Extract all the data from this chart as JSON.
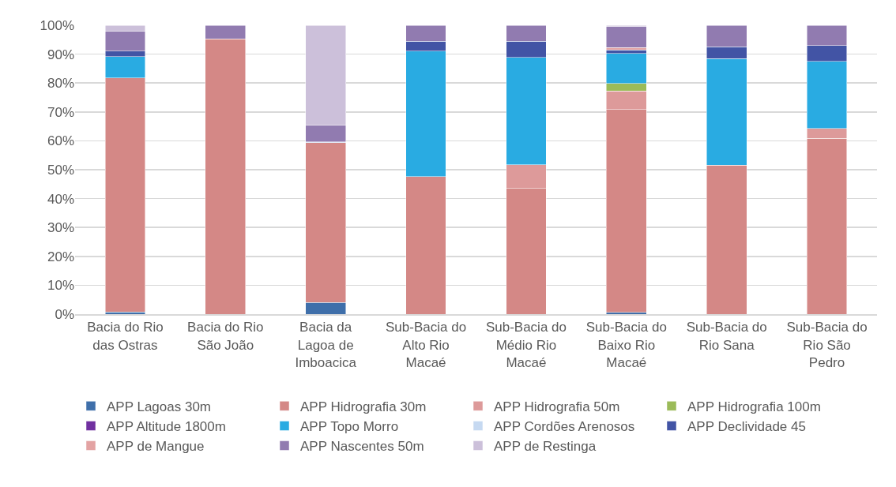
{
  "chart_data": {
    "type": "bar",
    "stacked": true,
    "categories": [
      "Bacia do Rio das Ostras",
      "Bacia do Rio São João",
      "Bacia da Lagoa de Imboacica",
      "Sub-Bacia do Alto Rio Macaé",
      "Sub-Bacia do Médio Rio Macaé",
      "Sub-Bacia do Baixo Rio Macaé",
      "Sub-Bacia do Rio Sana",
      "Sub-Bacia do Rio São Pedro"
    ],
    "series": [
      {
        "name": "APP Lagoas 30m",
        "color": "#3f6faa",
        "values": [
          0.8,
          null,
          4,
          null,
          null,
          0.6,
          null,
          null
        ]
      },
      {
        "name": "APP Hidrografia 30m",
        "color": "#d48886",
        "values": [
          80.9,
          95.3,
          55.3,
          47.6,
          43.5,
          70.3,
          51.6,
          60.8
        ]
      },
      {
        "name": "APP Hidrografia 50m",
        "color": "#dd9a9a",
        "values": [
          null,
          null,
          null,
          null,
          8.2,
          6.3,
          null,
          3.5
        ]
      },
      {
        "name": "APP Hidrografia 100m",
        "color": "#9bbb59",
        "values": [
          null,
          null,
          null,
          null,
          null,
          2.6,
          null,
          null
        ]
      },
      {
        "name": "APP Altitude 1800m",
        "color": "#7030a0",
        "values": [
          null,
          null,
          null,
          null,
          null,
          null,
          null,
          null
        ]
      },
      {
        "name": "APP Topo Morro",
        "color": "#29abe2",
        "values": [
          7.5,
          null,
          null,
          43.5,
          37.1,
          10.5,
          36.8,
          23.2
        ]
      },
      {
        "name": "APP Cordões Arenosos",
        "color": "#c6d9f1",
        "values": [
          null,
          null,
          0.3,
          null,
          null,
          null,
          null,
          null
        ]
      },
      {
        "name": "APP Declividade 45",
        "color": "#4254a5",
        "values": [
          1.8,
          null,
          null,
          3.4,
          5.7,
          1.2,
          4.2,
          5.4
        ]
      },
      {
        "name": "APP de Mangue",
        "color": "#e3a3a3",
        "values": [
          null,
          null,
          null,
          null,
          null,
          0.8,
          null,
          null
        ]
      },
      {
        "name": "APP Nascentes 50m",
        "color": "#917bb0",
        "values": [
          7,
          4.7,
          5.8,
          5.5,
          5.5,
          7.4,
          7.4,
          7.1
        ]
      },
      {
        "name": "APP de Restinga",
        "color": "#ccc0da",
        "values": [
          2,
          null,
          34.6,
          null,
          null,
          0.3,
          null,
          null
        ]
      }
    ],
    "ylim": [
      0,
      100
    ],
    "yticks": [
      {
        "value": 0,
        "label": "0%"
      },
      {
        "value": 10,
        "label": "10%"
      },
      {
        "value": 20,
        "label": "20%"
      },
      {
        "value": 30,
        "label": "30%"
      },
      {
        "value": 40,
        "label": "40%"
      },
      {
        "value": 50,
        "label": "50%"
      },
      {
        "value": 60,
        "label": "60%"
      },
      {
        "value": 70,
        "label": "70%"
      },
      {
        "value": 80,
        "label": "80%"
      },
      {
        "value": 90,
        "label": "90%"
      },
      {
        "value": 100,
        "label": "100%"
      }
    ],
    "grid": "y",
    "legend": "bottom"
  }
}
